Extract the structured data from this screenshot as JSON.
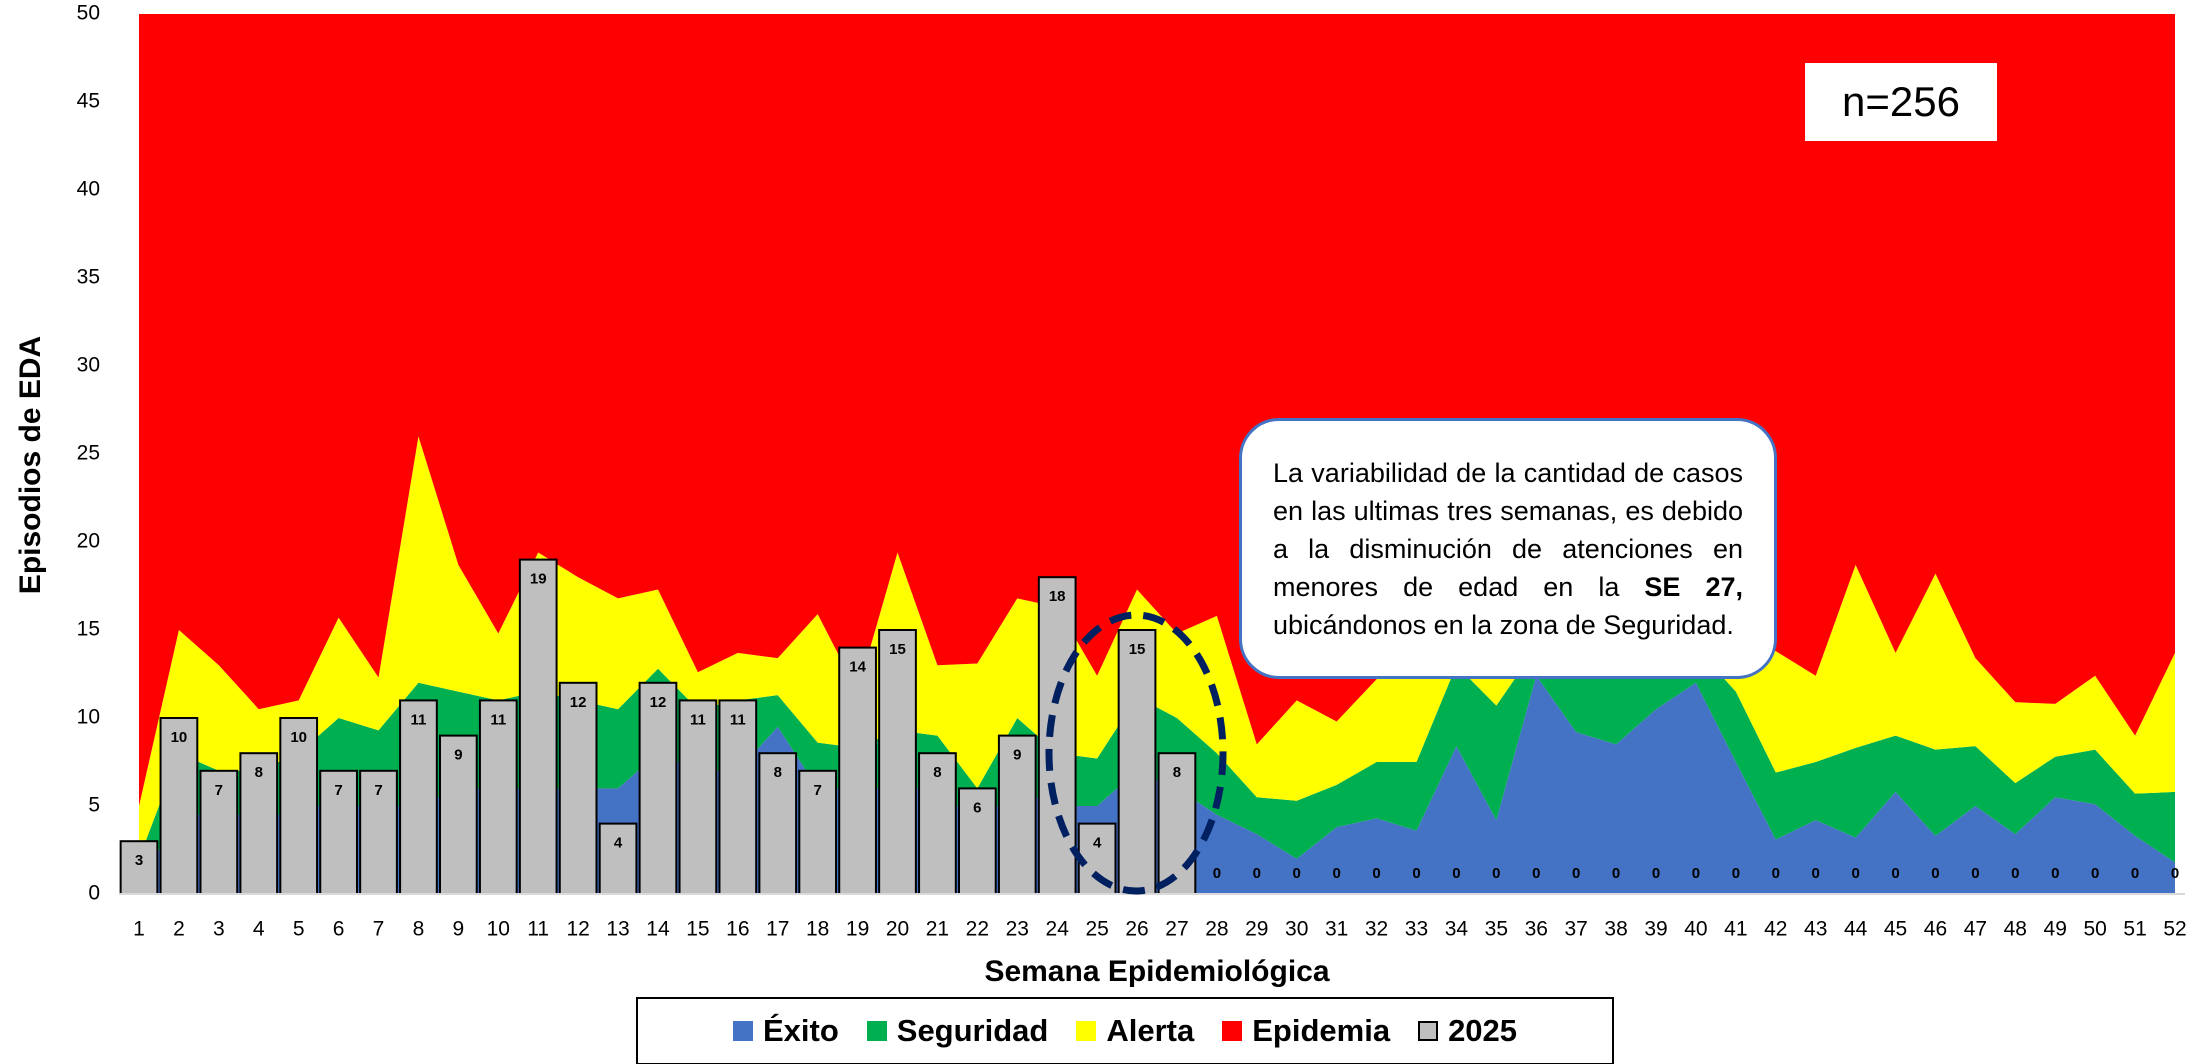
{
  "chart_data": {
    "type": "area",
    "y_label": "Episodios de EDA",
    "x_label": "Semana Epidemiológica",
    "ylim": [
      0,
      50
    ],
    "yticks": [
      0,
      5,
      10,
      15,
      20,
      25,
      30,
      35,
      40,
      45,
      50
    ],
    "categories": [
      1,
      2,
      3,
      4,
      5,
      6,
      7,
      8,
      9,
      10,
      11,
      12,
      13,
      14,
      15,
      16,
      17,
      18,
      19,
      20,
      21,
      22,
      23,
      24,
      25,
      26,
      27,
      28,
      29,
      30,
      31,
      32,
      33,
      34,
      35,
      36,
      37,
      38,
      39,
      40,
      41,
      42,
      43,
      44,
      45,
      46,
      47,
      48,
      49,
      50,
      51,
      52
    ],
    "series": [
      {
        "name": "Éxito",
        "color": "#4472c4",
        "stacked": true,
        "values": [
          1,
          4,
          5,
          4,
          5,
          5,
          5,
          5,
          6,
          6,
          6,
          6,
          6,
          8,
          7,
          7,
          9.5,
          6,
          6,
          6,
          6,
          4,
          6,
          5,
          5,
          7,
          6,
          4.5,
          3.4,
          2,
          3.8,
          4.3,
          3.6,
          8.4,
          4.2,
          12.4,
          9.2,
          8.5,
          10.5,
          12,
          7.5,
          3.1,
          4.2,
          3.2,
          5.8,
          3.3,
          5,
          3.4,
          5.5,
          5.1,
          3.3,
          1.8
        ]
      },
      {
        "name": "Seguridad",
        "color": "#00b050",
        "stacked": true,
        "values": [
          1,
          4,
          2,
          3,
          3,
          5,
          4.3,
          7,
          5.5,
          5,
          5.5,
          5,
          4.5,
          4.8,
          3.5,
          4,
          1.8,
          2.6,
          2.3,
          3.3,
          3,
          2,
          4,
          3,
          2.7,
          4.2,
          4,
          3.5,
          2.1,
          3.3,
          2.4,
          3.2,
          3.9,
          4.6,
          6.5,
          1.6,
          3.8,
          4.5,
          2.5,
          2,
          4,
          3.8,
          3.3,
          5.1,
          3.2,
          4.9,
          3.4,
          2.9,
          2.3,
          3.1,
          2.4,
          4
        ]
      },
      {
        "name": "Alerta",
        "color": "#ffff00",
        "stacked": true,
        "values": [
          3,
          7,
          6,
          3.5,
          3,
          5.7,
          3,
          14,
          7.2,
          3.8,
          7.9,
          7,
          6.3,
          4.5,
          2.1,
          2.7,
          2.1,
          7.3,
          3.2,
          10.1,
          4,
          7.1,
          6.8,
          8.3,
          4.7,
          6.1,
          4.8,
          7.8,
          3,
          5.7,
          3.6,
          4.7,
          6.5,
          3,
          3.3,
          2,
          3,
          3,
          3,
          2,
          3.5,
          6.9,
          4.9,
          10.4,
          4.7,
          10,
          5,
          4.6,
          3,
          4.2,
          3.3,
          7.9
        ]
      },
      {
        "name": "Epidemia",
        "color": "#ff0000",
        "stacked": true,
        "values": [
          45,
          35,
          37,
          39.5,
          39,
          34.3,
          37.7,
          24,
          31.3,
          35.2,
          30.6,
          32,
          33.2,
          32.7,
          37.4,
          36.3,
          36.6,
          34.1,
          38.5,
          30.6,
          37,
          36.9,
          33.2,
          33.7,
          37.6,
          32.7,
          35.2,
          34.2,
          41.5,
          39,
          40.2,
          37.8,
          36,
          34,
          36,
          34,
          34,
          34,
          34,
          34,
          35,
          36.2,
          37.6,
          31.3,
          36.3,
          31.8,
          36.6,
          39.1,
          39.2,
          37.6,
          41,
          36.3
        ]
      },
      {
        "name": "2025",
        "color": "#bfbfbf",
        "kind": "bar",
        "values": [
          3,
          10,
          7,
          8,
          10,
          7,
          7,
          11,
          9,
          11,
          19,
          12,
          4,
          12,
          11,
          11,
          8,
          7,
          14,
          15,
          8,
          6,
          9,
          18,
          4,
          15,
          8,
          0,
          0,
          0,
          0,
          0,
          0,
          0,
          0,
          0,
          0,
          0,
          0,
          0,
          0,
          0,
          0,
          0,
          0,
          0,
          0,
          0,
          0,
          0,
          0,
          0
        ]
      }
    ],
    "annotations": [
      {
        "text": "n=256"
      },
      {
        "parts": [
          "La variabilidad de la cantidad de casos en las ultimas tres semanas, es debido a la disminución de atenciones en menores de edad en la ",
          "SE 27,",
          " ubicándonos en la zona de Seguridad."
        ]
      }
    ]
  }
}
